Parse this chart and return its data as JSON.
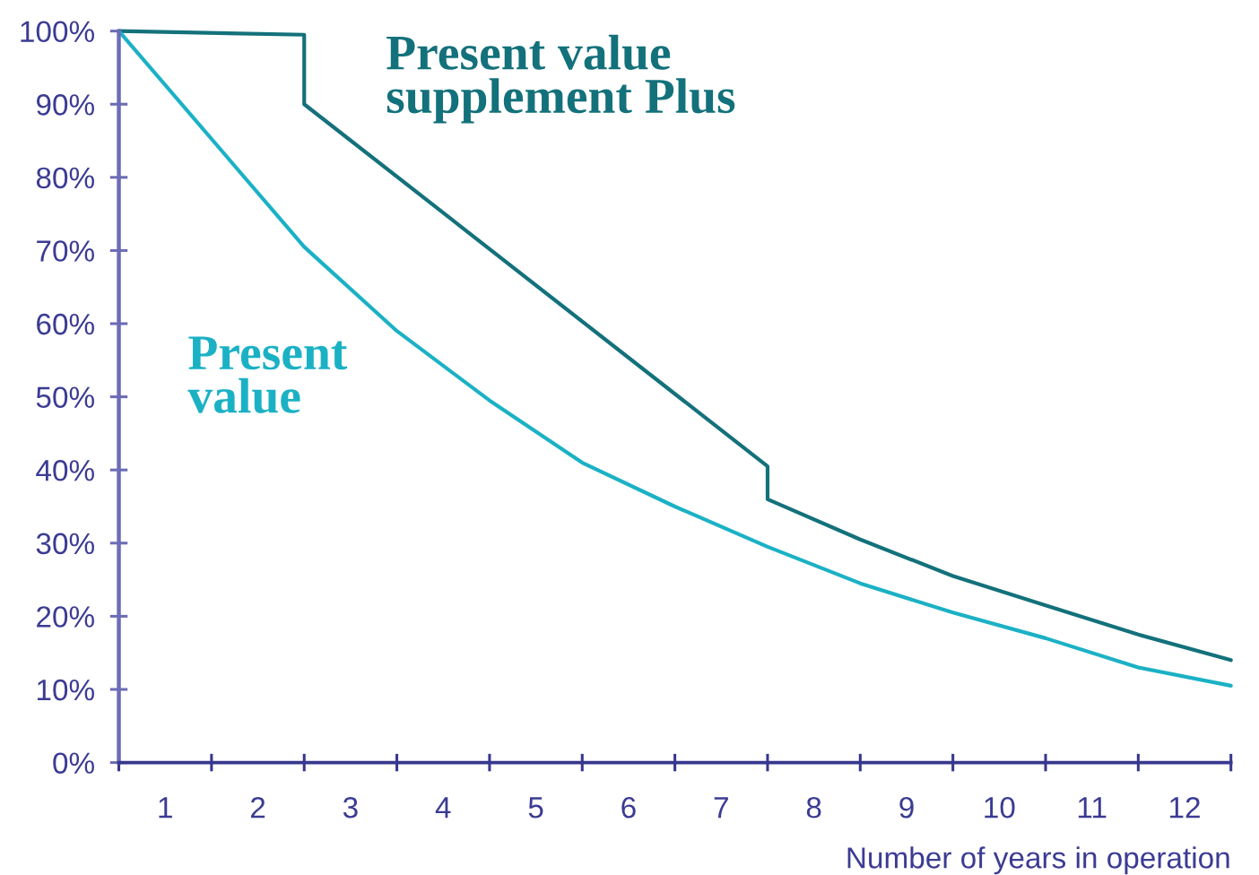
{
  "chart_data": {
    "type": "line",
    "xlabel": "Number of years in operation",
    "series": [
      {
        "name": "Present value supplement Plus",
        "color": "#13717b",
        "x": [
          0,
          2,
          2,
          7,
          7,
          8,
          9,
          10,
          11,
          12
        ],
        "values": [
          100,
          99.5,
          90,
          40.5,
          36,
          30.5,
          25.5,
          21.5,
          17.5,
          14
        ]
      },
      {
        "name": "Present value",
        "color": "#1bb1c5",
        "x": [
          0,
          2,
          3,
          4,
          5,
          6,
          7,
          8,
          9,
          10,
          11,
          12
        ],
        "values": [
          100,
          70.5,
          59,
          49.5,
          41,
          35,
          29.5,
          24.5,
          20.5,
          17,
          13,
          10.5
        ]
      }
    ],
    "xlim": [
      0,
      12
    ],
    "xticks": [
      {
        "value": 0,
        "label": null
      },
      {
        "value": 0.5,
        "label": "1"
      },
      {
        "value": 1,
        "label": null
      },
      {
        "value": 1.5,
        "label": "2"
      },
      {
        "value": 2,
        "label": null
      },
      {
        "value": 2.5,
        "label": "3"
      },
      {
        "value": 3,
        "label": null
      },
      {
        "value": 3.5,
        "label": "4"
      },
      {
        "value": 4,
        "label": null
      },
      {
        "value": 4.5,
        "label": "5"
      },
      {
        "value": 5,
        "label": null
      },
      {
        "value": 5.5,
        "label": "6"
      },
      {
        "value": 6,
        "label": null
      },
      {
        "value": 6.5,
        "label": "7"
      },
      {
        "value": 7,
        "label": null
      },
      {
        "value": 7.5,
        "label": "8"
      },
      {
        "value": 8,
        "label": null
      },
      {
        "value": 8.5,
        "label": "9"
      },
      {
        "value": 9,
        "label": null
      },
      {
        "value": 9.5,
        "label": "10"
      },
      {
        "value": 10,
        "label": null
      },
      {
        "value": 10.5,
        "label": "11"
      },
      {
        "value": 11,
        "label": null
      },
      {
        "value": 11.5,
        "label": "12"
      },
      {
        "value": 12,
        "label": null
      }
    ],
    "ylim": [
      0,
      100
    ],
    "yticks": [
      {
        "value": 0,
        "label": "0%"
      },
      {
        "value": 10,
        "label": "10%"
      },
      {
        "value": 20,
        "label": "20%"
      },
      {
        "value": 30,
        "label": "30%"
      },
      {
        "value": 40,
        "label": "40%"
      },
      {
        "value": 50,
        "label": "50%"
      },
      {
        "value": 60,
        "label": "60%"
      },
      {
        "value": 70,
        "label": "70%"
      },
      {
        "value": 80,
        "label": "80%"
      },
      {
        "value": 90,
        "label": "90%"
      },
      {
        "value": 100,
        "label": "100%"
      }
    ],
    "grid": false,
    "legend": false,
    "marker": "none",
    "line_style": "solid"
  }
}
